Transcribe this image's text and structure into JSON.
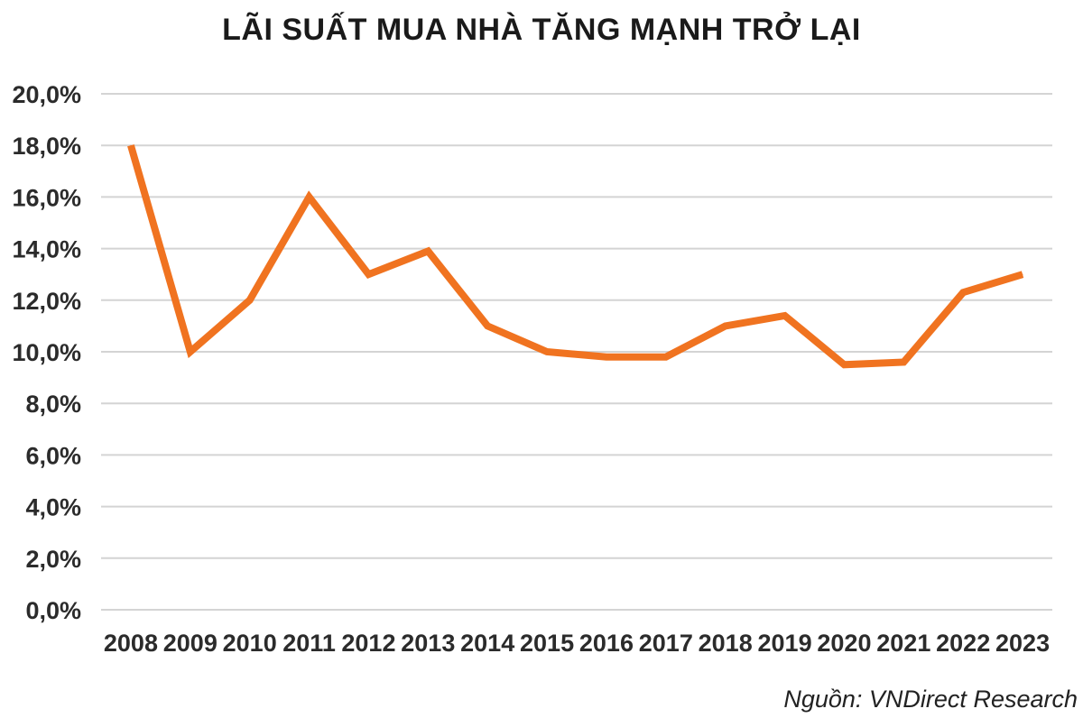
{
  "chart_data": {
    "type": "line",
    "title": "LÃI SUẤT MUA NHÀ TĂNG MẠNH TRỞ LẠI",
    "xlabel": "",
    "ylabel": "",
    "categories": [
      "2008",
      "2009",
      "2010",
      "2011",
      "2012",
      "2013",
      "2014",
      "2015",
      "2016",
      "2017",
      "2018",
      "2019",
      "2020",
      "2021",
      "2022",
      "2023"
    ],
    "series": [
      {
        "values": [
          18.0,
          10.0,
          12.0,
          16.0,
          13.0,
          13.9,
          11.0,
          10.0,
          9.8,
          9.8,
          11.0,
          11.4,
          9.5,
          9.6,
          12.3,
          13.0
        ],
        "color": "#F07320"
      }
    ],
    "ylim": [
      0,
      20
    ],
    "yticks": [
      "0,0%",
      "2,0%",
      "4,0%",
      "6,0%",
      "8,0%",
      "10,0%",
      "12,0%",
      "14,0%",
      "16,0%",
      "18,0%",
      "20,0%"
    ],
    "grid": true,
    "legend": "none",
    "gridline_color": "#d4d4d4"
  },
  "source": "Nguồn: VNDirect Research"
}
